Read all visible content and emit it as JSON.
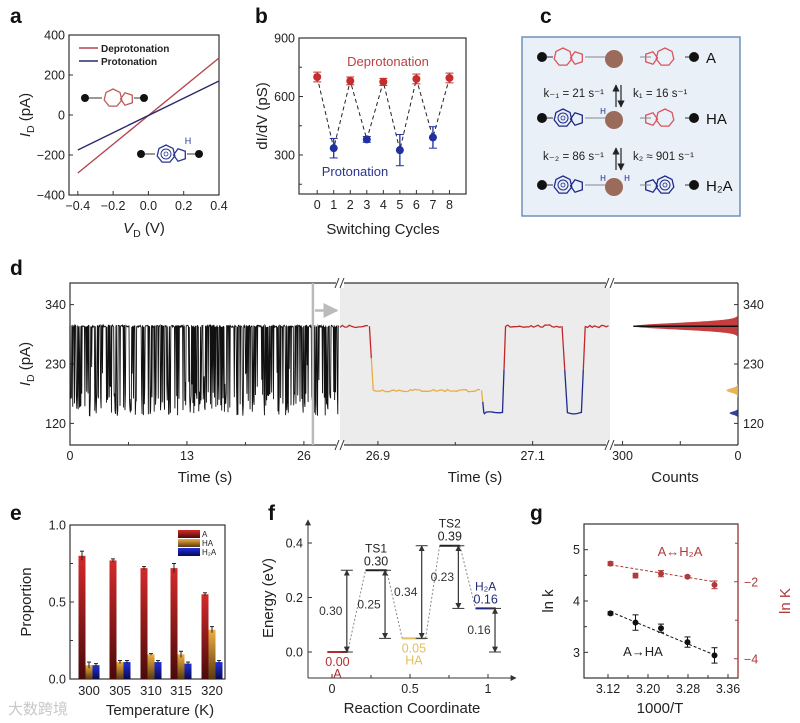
{
  "panel_labels": {
    "a": "a",
    "b": "b",
    "c": "c",
    "d": "d",
    "e": "e",
    "f": "f",
    "g": "g"
  },
  "watermark": "大数跨境",
  "scheme_c": {
    "states": [
      "A",
      "HA",
      "H₂A"
    ],
    "rates": [
      "k₋₁ = 21 s⁻¹",
      "k₁ = 16 s⁻¹",
      "k₋₂ = 86 s⁻¹",
      "k₂ ≈ 901 s⁻¹"
    ],
    "proton_label": "H",
    "colors": {
      "deprotonated": "#d9545a",
      "protonated": "#1f2a8a",
      "center": "#9a6b5a",
      "border": "#6f90b8",
      "fill": "#e9f0f8"
    }
  },
  "chart_data": [
    {
      "panel": "a",
      "type": "line",
      "xlabel": [
        "V",
        "D",
        " (V)"
      ],
      "ylabel": [
        "I",
        "D",
        " (pA)"
      ],
      "xlim": [
        -0.45,
        0.4
      ],
      "ylim": [
        -400,
        400
      ],
      "xticks": [
        -0.4,
        -0.2,
        0,
        0.2,
        0.4
      ],
      "xtick_labels": [
        "−0.4",
        "−0.2",
        "0.0",
        "0.2",
        "0.4"
      ],
      "yticks": [
        -400,
        -200,
        0,
        200,
        400
      ],
      "ytick_labels": [
        "−400",
        "−200",
        "0",
        "200",
        "400"
      ],
      "legend": "top-left",
      "series": [
        {
          "name": "Deprotonation",
          "color": "#b5454e",
          "x": [
            -0.4,
            0.4
          ],
          "y": [
            -290,
            285
          ]
        },
        {
          "name": "Protonation",
          "color": "#2b2b6b",
          "x": [
            -0.4,
            0.4
          ],
          "y": [
            -175,
            170
          ]
        }
      ]
    },
    {
      "panel": "b",
      "type": "scatter",
      "xlabel": "Switching Cycles",
      "ylabel": "dI/dV (pS)",
      "xlim": [
        -1.1,
        9.0
      ],
      "ylim": [
        100,
        900
      ],
      "xticks": [
        0,
        1,
        2,
        3,
        4,
        5,
        6,
        7,
        8
      ],
      "xtick_labels": [
        "0",
        "1",
        "2",
        "3",
        "4",
        "5",
        "6",
        "7",
        "8"
      ],
      "yticks": [
        300,
        600,
        900
      ],
      "ytick_labels": [
        "300",
        "600",
        "900"
      ],
      "series": [
        {
          "name": "Deprotonation",
          "color": "#c62e2e",
          "x": [
            0,
            2,
            4,
            6,
            8
          ],
          "y": [
            700,
            680,
            675,
            690,
            695
          ],
          "err": [
            25,
            20,
            18,
            25,
            25
          ]
        },
        {
          "name": "Protonation",
          "color": "#2030a0",
          "x": [
            1,
            3,
            5,
            7
          ],
          "y": [
            335,
            380,
            325,
            390
          ],
          "err": [
            50,
            15,
            80,
            55
          ]
        }
      ]
    },
    {
      "panel": "d",
      "type": "line",
      "ylabel": [
        "I",
        "D",
        " (pA)"
      ],
      "xlabel_left": "Time (s)",
      "xlabel_mid": "Time (s)",
      "xlabel_right": "Counts",
      "ylim": [
        80,
        380
      ],
      "yticks": [
        120,
        230,
        340
      ],
      "ytick_labels": [
        "120",
        "230",
        "340"
      ],
      "left_xlim": [
        0,
        29.9
      ],
      "left_xticks": [
        0,
        13,
        26
      ],
      "left_xtick_labels": [
        "0",
        "13",
        "26"
      ],
      "zoom_marker_time": 27.0,
      "mid_xlim": [
        26.851,
        27.2
      ],
      "mid_xticks": [
        26.9,
        27.1
      ],
      "mid_xtick_labels": [
        "26.9",
        "27.1"
      ],
      "hist_xlim": [
        330,
        0
      ],
      "hist_xticks": [
        300,
        0
      ],
      "hist_xtick_labels": [
        "300",
        "0"
      ],
      "levels_pA": {
        "A": 300,
        "HA": 181,
        "H2A": 139
      },
      "state_colors": {
        "A": "#c0282a",
        "HA": "#e8ad45",
        "H2A": "#1f2b8e"
      },
      "mid_segments": [
        {
          "state": "A",
          "t0": 26.851,
          "t1": 26.889
        },
        {
          "state": "HA",
          "t0": 26.894,
          "t1": 27.034
        },
        {
          "state": "H2A",
          "t0": 27.037,
          "t1": 27.061
        },
        {
          "state": "A",
          "t0": 27.065,
          "t1": 27.138
        },
        {
          "state": "H2A",
          "t0": 27.145,
          "t1": 27.163
        },
        {
          "state": "A",
          "t0": 27.168,
          "t1": 27.2
        }
      ],
      "histogram": [
        {
          "state": "A",
          "center": 300,
          "sigma": 6,
          "peak": 272
        },
        {
          "state": "HA",
          "center": 181,
          "sigma": 4,
          "peak": 30
        },
        {
          "state": "H2A",
          "center": 139,
          "sigma": 3,
          "peak": 22
        }
      ]
    },
    {
      "panel": "e",
      "type": "bar",
      "xlabel": "Temperature (K)",
      "ylabel": "Proportion",
      "categories": [
        "300",
        "305",
        "310",
        "315",
        "320"
      ],
      "ylim": [
        0,
        1
      ],
      "yticks": [
        0,
        0.5,
        1
      ],
      "ytick_labels": [
        "0.0",
        "0.5",
        "1.0"
      ],
      "legend": "top-right",
      "series": [
        {
          "name": "A",
          "color": "#d42a2a",
          "dark": "#4a0a0a",
          "values": [
            0.8,
            0.77,
            0.72,
            0.72,
            0.55
          ],
          "err": [
            0.03,
            0.01,
            0.01,
            0.03,
            0.01
          ]
        },
        {
          "name": "HA",
          "color": "#f0b040",
          "dark": "#5a3a10",
          "values": [
            0.09,
            0.11,
            0.16,
            0.16,
            0.32
          ],
          "err": [
            0.02,
            0.01,
            0.005,
            0.02,
            0.02
          ]
        },
        {
          "name": "H₂A",
          "color": "#2030e0",
          "dark": "#0a0a50",
          "values": [
            0.09,
            0.11,
            0.11,
            0.1,
            0.11
          ],
          "err": [
            0.01,
            0.01,
            0.01,
            0.01,
            0.01
          ]
        }
      ]
    },
    {
      "panel": "f",
      "type": "line",
      "xlabel": "Reaction Coordinate",
      "ylabel": "Energy (eV)",
      "xlim": [
        -0.15,
        1.2
      ],
      "ylim": [
        -0.1,
        0.5
      ],
      "xticks": [
        0,
        0.5,
        1
      ],
      "xtick_labels": [
        "0",
        "0.5",
        "1"
      ],
      "yticks": [
        0,
        0.2,
        0.4
      ],
      "ytick_labels": [
        "0.0",
        "0.2",
        "0.4"
      ],
      "levels": [
        {
          "name": "A",
          "value_label": "0.00",
          "energy": 0.0,
          "x0": -0.03,
          "x1": 0.1,
          "color": "#b03030",
          "label_below": true
        },
        {
          "name": "TS1",
          "value_label": "0.30",
          "energy": 0.3,
          "x0": 0.215,
          "x1": 0.35,
          "color": "#222222",
          "label_below": false
        },
        {
          "name": "HA",
          "value_label": "0.05",
          "energy": 0.05,
          "x0": 0.45,
          "x1": 0.6,
          "color": "#e0c060",
          "label_below": true
        },
        {
          "name": "TS2",
          "value_label": "0.39",
          "energy": 0.39,
          "x0": 0.69,
          "x1": 0.82,
          "color": "#222222",
          "label_below": false
        },
        {
          "name": "H₂A",
          "value_label": "0.16",
          "energy": 0.16,
          "x0": 0.92,
          "x1": 1.05,
          "color": "#1f2a7a",
          "label_below": false
        }
      ],
      "barriers": [
        {
          "label": "0.30",
          "x": 0.095,
          "from": 0.0,
          "to": 0.3
        },
        {
          "label": "0.25",
          "x": 0.34,
          "from": 0.3,
          "to": 0.05
        },
        {
          "label": "0.34",
          "x": 0.575,
          "from": 0.05,
          "to": 0.39
        },
        {
          "label": "0.23",
          "x": 0.81,
          "from": 0.39,
          "to": 0.16
        },
        {
          "label": "0.16",
          "x": 1.045,
          "from": 0.16,
          "to": 0.0
        }
      ]
    },
    {
      "panel": "g",
      "type": "scatter",
      "xlabel": "1000/T",
      "ylabel": "ln k",
      "ylabel_right": "ln K",
      "xlim": [
        3.072,
        3.38
      ],
      "ylim": [
        2.5,
        5.5
      ],
      "ylim_right": [
        -4.5,
        -0.5
      ],
      "xticks": [
        3.12,
        3.2,
        3.28,
        3.36
      ],
      "xtick_labels": [
        "3.12",
        "3.20",
        "3.28",
        "3.36"
      ],
      "yticks": [
        3,
        4,
        5
      ],
      "ytick_labels": [
        "3",
        "4",
        "5"
      ],
      "yticks_right": [
        -2,
        -4
      ],
      "ytick_labels_right": [
        "−2",
        "−4"
      ],
      "series": [
        {
          "name": "A→HA",
          "axis": "left",
          "color": "#111111",
          "x": [
            3.125,
            3.175,
            3.226,
            3.279,
            3.333
          ],
          "y": [
            3.76,
            3.58,
            3.47,
            3.2,
            2.94
          ],
          "err": [
            0.03,
            0.15,
            0.08,
            0.1,
            0.15
          ],
          "fit": [
            [
              3.125,
              3.79
            ],
            [
              3.333,
              2.95
            ]
          ]
        },
        {
          "name": "A↔H₂A",
          "axis": "right",
          "color": "#b03a3a",
          "x": [
            3.125,
            3.175,
            3.226,
            3.279,
            3.333
          ],
          "y": [
            -1.53,
            -1.84,
            -1.79,
            -1.87,
            -2.08
          ],
          "err": [
            0.05,
            0.06,
            0.08,
            0.03,
            0.1
          ],
          "fit": [
            [
              3.125,
              -1.56
            ],
            [
              3.333,
              -2.0
            ]
          ]
        }
      ]
    }
  ]
}
